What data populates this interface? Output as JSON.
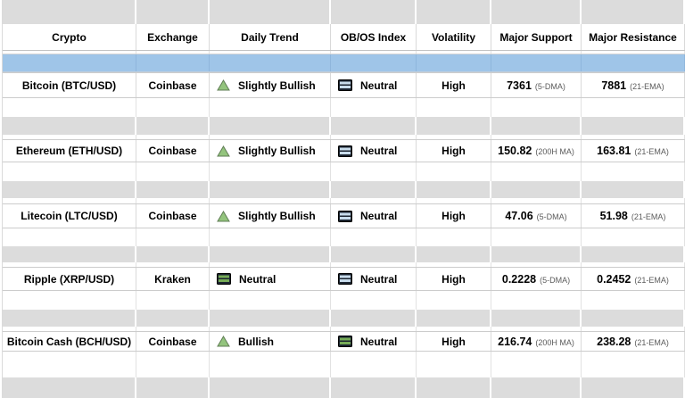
{
  "table": {
    "columns": [
      {
        "label": "Crypto"
      },
      {
        "label": "Exchange"
      },
      {
        "label": "Daily Trend"
      },
      {
        "label": "OB/OS Index"
      },
      {
        "label": "Volatility"
      },
      {
        "label": "Major Support"
      },
      {
        "label": "Major Resistance"
      }
    ],
    "rows": [
      {
        "crypto": "Bitcoin (BTC/USD)",
        "exchange": "Coinbase",
        "daily_trend": {
          "icon": "trend-up-triangle-icon",
          "variant": "green",
          "label": "Slightly Bullish"
        },
        "obos": {
          "icon": "neutral-bars-icon",
          "variant": "blue",
          "label": "Neutral"
        },
        "volatility": "High",
        "major_support": {
          "value": "7361",
          "basis": "(5-DMA)"
        },
        "major_resistance": {
          "value": "7881",
          "basis": "(21-EMA)"
        }
      },
      {
        "crypto": "Ethereum (ETH/USD)",
        "exchange": "Coinbase",
        "daily_trend": {
          "icon": "trend-up-triangle-icon",
          "variant": "green",
          "label": "Slightly Bullish"
        },
        "obos": {
          "icon": "neutral-bars-icon",
          "variant": "blue",
          "label": "Neutral"
        },
        "volatility": "High",
        "major_support": {
          "value": "150.82",
          "basis": "(200H MA)"
        },
        "major_resistance": {
          "value": "163.81",
          "basis": "(21-EMA)"
        }
      },
      {
        "crypto": "Litecoin (LTC/USD)",
        "exchange": "Coinbase",
        "daily_trend": {
          "icon": "trend-up-triangle-icon",
          "variant": "green",
          "label": "Slightly Bullish"
        },
        "obos": {
          "icon": "neutral-bars-icon",
          "variant": "blue",
          "label": "Neutral"
        },
        "volatility": "High",
        "major_support": {
          "value": "47.06",
          "basis": "(5-DMA)"
        },
        "major_resistance": {
          "value": "51.98",
          "basis": "(21-EMA)"
        }
      },
      {
        "crypto": "Ripple (XRP/USD)",
        "exchange": "Kraken",
        "daily_trend": {
          "icon": "neutral-bars-icon",
          "variant": "green",
          "label": "Neutral"
        },
        "obos": {
          "icon": "neutral-bars-icon",
          "variant": "blue",
          "label": "Neutral"
        },
        "volatility": "High",
        "major_support": {
          "value": "0.2228",
          "basis": "(5-DMA)"
        },
        "major_resistance": {
          "value": "0.2452",
          "basis": "(21-EMA)"
        }
      },
      {
        "crypto": "Bitcoin Cash (BCH/USD)",
        "exchange": "Coinbase",
        "daily_trend": {
          "icon": "trend-up-triangle-icon",
          "variant": "green",
          "label": "Bullish"
        },
        "obos": {
          "icon": "neutral-bars-icon",
          "variant": "green",
          "label": "Neutral"
        },
        "volatility": "High",
        "major_support": {
          "value": "216.74",
          "basis": "(200H MA)"
        },
        "major_resistance": {
          "value": "238.28",
          "basis": "(21-EMA)"
        }
      }
    ]
  },
  "colors": {
    "selected_row": "#9fc5e8",
    "separator_band": "#dcdcdc",
    "trend_up_fill": "#93c47d",
    "trend_up_stroke": "#5f7d54",
    "neutral_icon_dark": "#1b2430",
    "neutral_stripe_blue": "#c8dcec",
    "neutral_stripe_green": "#76ab57"
  }
}
